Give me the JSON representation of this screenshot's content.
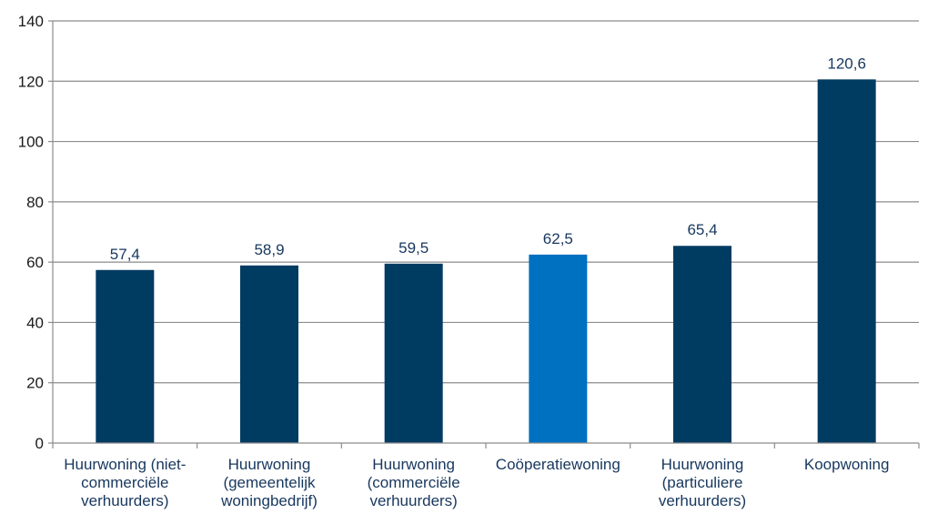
{
  "chart_data": {
    "type": "bar",
    "categories": [
      [
        "Huurwoning (niet-",
        "commerciële",
        "verhuurders)"
      ],
      [
        "Huurwoning",
        "(gemeentelijk",
        "woningbedrijf)"
      ],
      [
        "Huurwoning",
        "(commerciële",
        "verhuurders)"
      ],
      [
        "Coöperatiewoning"
      ],
      [
        "Huurwoning",
        "(particuliere",
        "verhuurders)"
      ],
      [
        "Koopwoning"
      ]
    ],
    "values": [
      57.4,
      58.9,
      59.5,
      62.5,
      65.4,
      120.6
    ],
    "value_labels": [
      "57,4",
      "58,9",
      "59,5",
      "62,5",
      "65,4",
      "120,6"
    ],
    "bar_colors": [
      "#003b62",
      "#003b62",
      "#003b62",
      "#0070c0",
      "#003b62",
      "#003b62"
    ],
    "ylim": [
      0,
      140
    ],
    "yticks": [
      0,
      20,
      40,
      60,
      80,
      100,
      120,
      140
    ],
    "grid": true,
    "legend": "none",
    "title": "",
    "xlabel": "",
    "ylabel": ""
  }
}
